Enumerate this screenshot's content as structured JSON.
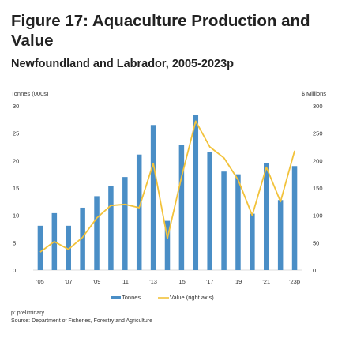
{
  "header": {
    "title": "Figure 17: Aquaculture Production and Value",
    "subtitle": "Newfoundland and Labrador, 2005-2023p"
  },
  "footer": {
    "note": "p: preliminary",
    "source": "Source: Department of Fisheries, Forestry and Agriculture"
  },
  "colors": {
    "bar": "#4a8ec6",
    "line": "#f2c23a",
    "text": "#222222"
  },
  "chart_data": {
    "type": "bar",
    "y_left_label": "Tonnes (000s)",
    "y_right_label": "$ Millions",
    "y_left_lim": [
      0,
      30
    ],
    "y_right_lim": [
      0,
      300
    ],
    "y_left_ticks": [
      0,
      5,
      10,
      15,
      20,
      25,
      30
    ],
    "y_right_ticks": [
      0,
      50,
      100,
      150,
      200,
      250,
      300
    ],
    "categories": [
      "2005",
      "2006",
      "2007",
      "2008",
      "2009",
      "2010",
      "2011",
      "2012",
      "2013",
      "2014",
      "2015",
      "2016",
      "2017",
      "2018",
      "2019",
      "2020",
      "2021",
      "2022",
      "2023p"
    ],
    "x_tick_labels": [
      "'05",
      "",
      "'07",
      "",
      "'09",
      "",
      "'11",
      "",
      "'13",
      "",
      "'15",
      "",
      "'17",
      "",
      "'19",
      "",
      "'21",
      "",
      "'23p"
    ],
    "series": [
      {
        "name": "Tonnes",
        "type": "bar",
        "axis": "left",
        "values": [
          8.1,
          10.4,
          8.1,
          11.4,
          13.5,
          15.3,
          17.0,
          21.1,
          26.5,
          9.0,
          22.8,
          28.4,
          21.6,
          18.0,
          17.5,
          10.3,
          19.6,
          12.8,
          19.0
        ]
      },
      {
        "name": "Value (right axis)",
        "type": "line",
        "axis": "right",
        "values": [
          33,
          52,
          38,
          60,
          95,
          118,
          120,
          114,
          195,
          58,
          170,
          272,
          225,
          205,
          165,
          100,
          188,
          125,
          218
        ]
      }
    ],
    "legend_position": "bottom",
    "grid": false
  }
}
